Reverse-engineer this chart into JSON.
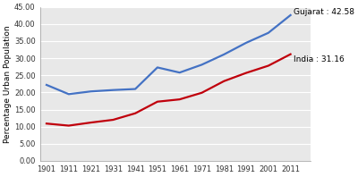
{
  "years": [
    1901,
    1911,
    1921,
    1931,
    1941,
    1951,
    1961,
    1971,
    1981,
    1991,
    2001,
    2011
  ],
  "gujarat": [
    22.2,
    19.5,
    20.3,
    20.7,
    21.0,
    27.3,
    25.8,
    28.1,
    31.1,
    34.5,
    37.4,
    42.58
  ],
  "india": [
    10.9,
    10.3,
    11.2,
    12.0,
    13.9,
    17.3,
    17.97,
    19.9,
    23.3,
    25.7,
    27.8,
    31.16
  ],
  "gujarat_color": "#4472C4",
  "india_color": "#C0000C",
  "ylim": [
    0,
    45
  ],
  "yticks": [
    0.0,
    5.0,
    10.0,
    15.0,
    20.0,
    25.0,
    30.0,
    35.0,
    40.0,
    45.0
  ],
  "ylabel": "Percentage Urban Population",
  "gujarat_label": "Gujarat : 42.58",
  "india_label": "India : 31.16",
  "bg_color": "#FFFFFF",
  "plot_bg_color": "#E8E8E8",
  "linewidth": 1.6,
  "annotation_fontsize": 6.5,
  "tick_fontsize": 6.0,
  "ylabel_fontsize": 6.5
}
